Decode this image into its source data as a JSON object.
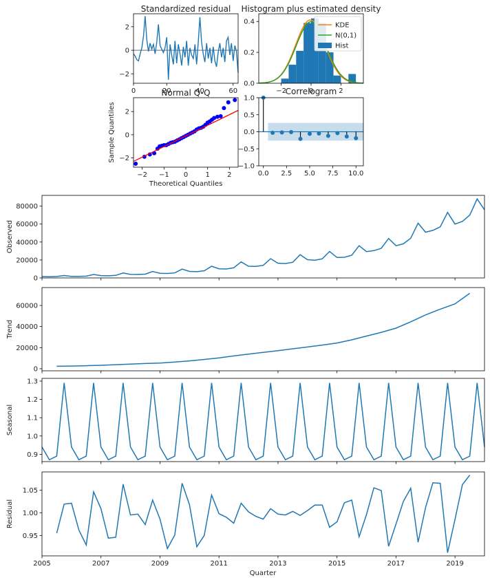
{
  "chart_data": [
    {
      "id": "standardized-residual",
      "type": "line",
      "title": "Standardized residual",
      "xlabel": "",
      "ylabel": "",
      "xlim": [
        0,
        63
      ],
      "ylim": [
        -2.8,
        3.1
      ],
      "xticks": [
        0,
        20,
        40,
        60
      ],
      "yticks": [
        -2,
        0,
        2
      ],
      "color": "#1f77b4",
      "x": [
        0,
        1,
        2,
        3,
        4,
        5,
        6,
        7,
        8,
        9,
        10,
        11,
        12,
        13,
        14,
        15,
        16,
        17,
        18,
        19,
        20,
        21,
        22,
        23,
        24,
        25,
        26,
        27,
        28,
        29,
        30,
        31,
        32,
        33,
        34,
        35,
        36,
        37,
        38,
        39,
        40,
        41,
        42,
        43,
        44,
        45,
        46,
        47,
        48,
        49,
        50,
        51,
        52,
        53,
        54,
        55,
        56,
        57,
        58,
        59,
        60,
        61,
        62,
        63
      ],
      "values": [
        -0.3,
        -0.5,
        -0.8,
        -0.9,
        -0.3,
        0.2,
        1.2,
        2.9,
        0.9,
        -0.1,
        0.6,
        0.1,
        0.5,
        -0.3,
        0.7,
        2.2,
        0.4,
        0.1,
        -0.2,
        0.2,
        1.1,
        -2.5,
        0.5,
        -0.4,
        -1.2,
        0.8,
        -1.1,
        0.5,
        -0.3,
        -1.3,
        0.3,
        -0.6,
        0.8,
        -1.3,
        0.2,
        -0.4,
        -0.7,
        0.5,
        -1.2,
        0.7,
        2.8,
        0.7,
        -0.3,
        -1.0,
        0.6,
        -0.7,
        0.2,
        -1.1,
        0.3,
        -0.9,
        -1.4,
        -0.2,
        0.6,
        -0.6,
        0.2,
        -1.0,
        0.8,
        1.1,
        -0.4,
        0.6,
        -0.9,
        0.4,
        -0.1,
        -1.9
      ],
      "zero_line": 0
    },
    {
      "id": "histogram-density",
      "type": "bar",
      "title": "Histogram plus estimated density",
      "xlabel": "",
      "ylabel": "",
      "xlim": [
        -3.5,
        3.5
      ],
      "ylim": [
        0,
        0.45
      ],
      "xticks": [
        -2,
        0,
        2
      ],
      "yticks": [
        0.0,
        0.2,
        0.4
      ],
      "hist_bins": [
        -2.5,
        -2.0,
        -1.5,
        -1.0,
        -0.5,
        0.0,
        0.5,
        1.0,
        1.5,
        2.0,
        2.5,
        3.0
      ],
      "hist_values": [
        0.0,
        0.03,
        0.12,
        0.21,
        0.39,
        0.42,
        0.39,
        0.2,
        0.05,
        0.0,
        0.06
      ],
      "kde": {
        "name": "KDE",
        "color": "#ff7f0e",
        "mu": -0.05,
        "sigma": 0.98,
        "peak": 0.41
      },
      "normal": {
        "name": "N(0,1)",
        "color": "#2ca02c",
        "mu": 0,
        "sigma": 1,
        "peak": 0.399
      },
      "hist_name": "Hist",
      "hist_color": "#1f77b4",
      "legend": [
        "KDE",
        "N(0,1)",
        "Hist"
      ],
      "legend_placement": "top-right"
    },
    {
      "id": "normal-qq",
      "type": "scatter",
      "title": "Normal Q-Q",
      "xlabel": "Theoretical Quantiles",
      "ylabel": "Sample Quantiles",
      "xlim": [
        -2.4,
        2.4
      ],
      "ylim": [
        -2.8,
        3.2
      ],
      "xticks": [
        -2,
        -1,
        0,
        1,
        2
      ],
      "yticks": [
        -2,
        0,
        2
      ],
      "point_color": "#0000ff",
      "line_color": "#ff0000",
      "line": [
        [
          -2.4,
          -2.3
        ],
        [
          2.4,
          2.1
        ]
      ],
      "points_x": [
        -2.3,
        -1.9,
        -1.65,
        -1.45,
        -1.3,
        -1.2,
        -1.1,
        -1.0,
        -0.9,
        -0.8,
        -0.7,
        -0.6,
        -0.5,
        -0.4,
        -0.3,
        -0.2,
        -0.1,
        0.0,
        0.1,
        0.2,
        0.3,
        0.4,
        0.5,
        0.6,
        0.7,
        0.8,
        0.9,
        1.0,
        1.1,
        1.2,
        1.3,
        1.45,
        1.6,
        1.75,
        1.95,
        2.25
      ],
      "points_y": [
        -2.5,
        -1.9,
        -1.7,
        -1.6,
        -1.2,
        -1.0,
        -0.95,
        -0.9,
        -0.9,
        -0.8,
        -0.7,
        -0.65,
        -0.6,
        -0.5,
        -0.4,
        -0.3,
        -0.2,
        -0.1,
        0.0,
        0.1,
        0.2,
        0.3,
        0.45,
        0.55,
        0.6,
        0.7,
        0.85,
        1.05,
        1.15,
        1.3,
        1.45,
        1.55,
        1.6,
        2.3,
        2.8,
        3.0
      ]
    },
    {
      "id": "correlogram",
      "type": "bar",
      "title": "Correlogram",
      "xlabel": "",
      "ylabel": "",
      "xlim": [
        -0.5,
        10.8
      ],
      "ylim": [
        -1.0,
        1.0
      ],
      "xticks": [
        0.0,
        2.5,
        5.0,
        7.5,
        10.0
      ],
      "xtick_labels": [
        "0.0",
        "2.5",
        "5.0",
        "7.5",
        "10.0"
      ],
      "yticks": [
        -1.0,
        -0.5,
        0.0,
        0.5,
        1.0
      ],
      "ytick_labels": [
        "-1.0",
        "-0.5",
        "0.0",
        "0.5",
        "1.0"
      ],
      "lags": [
        0,
        1,
        2,
        3,
        4,
        5,
        6,
        7,
        8,
        9,
        10
      ],
      "values": [
        1.0,
        -0.03,
        -0.02,
        -0.01,
        -0.21,
        -0.06,
        -0.05,
        -0.12,
        -0.04,
        -0.14,
        -0.19
      ],
      "conf_band": 0.26,
      "color": "#1f77b4"
    },
    {
      "id": "decomposition",
      "type": "line",
      "xlabel": "Quarter",
      "xlim": [
        2005.0,
        2020.0
      ],
      "xticks": [
        2005,
        2007,
        2009,
        2011,
        2013,
        2015,
        2017,
        2019
      ],
      "xtick_labels": [
        "2005",
        "2007",
        "2009",
        "2011",
        "2013",
        "2015",
        "2017",
        "2019"
      ],
      "color": "#1f77b4",
      "panels": [
        {
          "ylabel": "Observed",
          "ylim": [
            0,
            92000
          ],
          "yticks": [
            0,
            20000,
            40000,
            60000,
            80000
          ],
          "x": [
            2005.0,
            2005.25,
            2005.5,
            2005.75,
            2006.0,
            2006.25,
            2006.5,
            2006.75,
            2007.0,
            2007.25,
            2007.5,
            2007.75,
            2008.0,
            2008.25,
            2008.5,
            2008.75,
            2009.0,
            2009.25,
            2009.5,
            2009.75,
            2010.0,
            2010.25,
            2010.5,
            2010.75,
            2011.0,
            2011.25,
            2011.5,
            2011.75,
            2012.0,
            2012.25,
            2012.5,
            2012.75,
            2013.0,
            2013.25,
            2013.5,
            2013.75,
            2014.0,
            2014.25,
            2014.5,
            2014.75,
            2015.0,
            2015.25,
            2015.5,
            2015.75,
            2016.0,
            2016.25,
            2016.5,
            2016.75,
            2017.0,
            2017.25,
            2017.5,
            2017.75,
            2018.0,
            2018.25,
            2018.5,
            2018.75,
            2019.0,
            2019.25,
            2019.5,
            2019.75,
            2020.0
          ],
          "values": [
            1500,
            1400,
            1600,
            2700,
            1800,
            1700,
            2000,
            3800,
            2600,
            2400,
            2800,
            5500,
            3900,
            3800,
            4200,
            7100,
            5200,
            5000,
            5600,
            9800,
            7300,
            7000,
            8000,
            13000,
            10200,
            10000,
            11300,
            17900,
            13000,
            12800,
            14000,
            21500,
            16400,
            16000,
            17500,
            25900,
            20300,
            19800,
            21200,
            29500,
            22800,
            23000,
            25300,
            35900,
            29400,
            30400,
            33000,
            44000,
            35900,
            38000,
            44200,
            61000,
            51000,
            53000,
            57000,
            73000,
            60000,
            63000,
            70000,
            88000,
            76000
          ]
        },
        {
          "ylabel": "Trend",
          "ylim": [
            -2000,
            77000
          ],
          "yticks": [
            0,
            20000,
            40000,
            60000
          ],
          "x": [
            2005.5,
            2006.0,
            2006.5,
            2007.0,
            2007.5,
            2008.0,
            2008.5,
            2009.0,
            2009.5,
            2010.0,
            2010.5,
            2011.0,
            2011.5,
            2012.0,
            2012.5,
            2013.0,
            2013.5,
            2014.0,
            2014.5,
            2015.0,
            2015.5,
            2016.0,
            2016.5,
            2017.0,
            2017.5,
            2018.0,
            2018.5,
            2019.0,
            2019.5
          ],
          "values": [
            2300,
            2500,
            2800,
            3200,
            3800,
            4400,
            4900,
            5400,
            6300,
            7400,
            8800,
            10300,
            12100,
            13800,
            15500,
            17100,
            18900,
            20600,
            22400,
            24400,
            27400,
            31000,
            34500,
            38500,
            44500,
            51000,
            56500,
            61500,
            71500
          ]
        },
        {
          "ylabel": "Seasonal",
          "ylim": [
            0.86,
            1.315
          ],
          "yticks": [
            0.9,
            1.0,
            1.1,
            1.2,
            1.3
          ],
          "pattern": [
            0.94,
            0.87,
            0.89,
            1.29
          ],
          "start": 2005.0,
          "step": 0.25
        },
        {
          "ylabel": "Residual",
          "ylim": [
            0.905,
            1.09
          ],
          "yticks": [
            0.95,
            1.0,
            1.05
          ],
          "x": [
            2005.5,
            2005.75,
            2006.0,
            2006.25,
            2006.5,
            2006.75,
            2007.0,
            2007.25,
            2007.5,
            2007.75,
            2008.0,
            2008.25,
            2008.5,
            2008.75,
            2009.0,
            2009.25,
            2009.5,
            2009.75,
            2010.0,
            2010.25,
            2010.5,
            2010.75,
            2011.0,
            2011.25,
            2011.5,
            2011.75,
            2012.0,
            2012.25,
            2012.5,
            2012.75,
            2013.0,
            2013.25,
            2013.5,
            2013.75,
            2014.0,
            2014.25,
            2014.5,
            2014.75,
            2015.0,
            2015.25,
            2015.5,
            2015.75,
            2016.0,
            2016.25,
            2016.5,
            2016.75,
            2017.0,
            2017.25,
            2017.5,
            2017.75,
            2018.0,
            2018.25,
            2018.5,
            2018.75,
            2019.0,
            2019.25,
            2019.5
          ],
          "values": [
            0.955,
            1.019,
            1.021,
            0.962,
            0.929,
            1.046,
            1.009,
            0.944,
            0.946,
            1.063,
            0.995,
            0.997,
            0.974,
            1.028,
            0.986,
            0.921,
            0.951,
            1.065,
            1.018,
            0.925,
            0.95,
            1.039,
            0.998,
            0.99,
            0.977,
            1.021,
            1.002,
            0.992,
            0.986,
            1.009,
            0.997,
            0.995,
            1.003,
            0.994,
            1.005,
            1.017,
            1.017,
            0.968,
            0.98,
            1.022,
            1.028,
            0.947,
            0.996,
            1.055,
            1.049,
            0.926,
            0.975,
            1.025,
            1.054,
            0.935,
            1.011,
            1.066,
            1.065,
            0.912,
            0.985,
            1.062,
            1.083
          ]
        }
      ]
    }
  ]
}
